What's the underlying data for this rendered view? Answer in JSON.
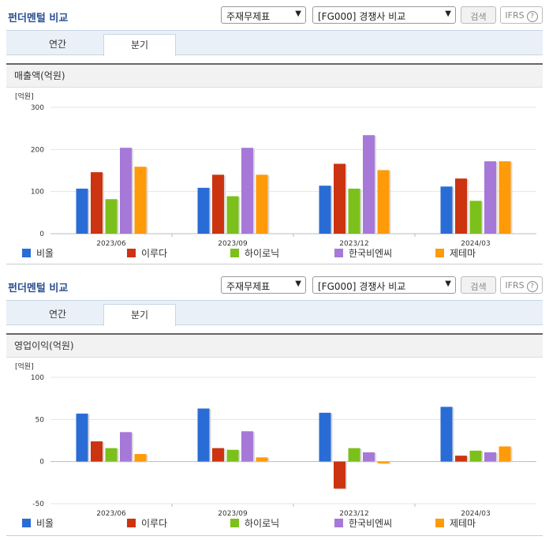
{
  "header": {
    "title": "펀더멘털 비교",
    "select1": "주재무제표",
    "select2": "[FG000] 경쟁사 비교",
    "search_btn": "검색",
    "ifrs_btn": "IFRS",
    "help": "?"
  },
  "tabs": [
    "연간",
    "분기"
  ],
  "active_tab": "분기",
  "sections": [
    {
      "subtitle": "매출액(억원)"
    },
    {
      "subtitle": "영업이익(억원)"
    }
  ],
  "colors": [
    "#2a6cd6",
    "#cc3310",
    "#7cc01c",
    "#a678d8",
    "#ff9a08"
  ],
  "chart_data": [
    {
      "type": "bar",
      "title": "매출액(억원)",
      "unit_label": "[억원]",
      "categories": [
        "2023/06",
        "2023/09",
        "2023/12",
        "2024/03"
      ],
      "ylim": [
        0,
        300
      ],
      "yticks": [
        0,
        100,
        200,
        300
      ],
      "legend_position": "bottom",
      "series": [
        {
          "name": "비올",
          "values": [
            107,
            109,
            114,
            112
          ]
        },
        {
          "name": "이루다",
          "values": [
            146,
            140,
            166,
            131
          ]
        },
        {
          "name": "하이로닉",
          "values": [
            82,
            89,
            107,
            78
          ]
        },
        {
          "name": "한국비엔씨",
          "values": [
            204,
            204,
            234,
            172
          ]
        },
        {
          "name": "제테마",
          "values": [
            159,
            140,
            151,
            172
          ]
        }
      ]
    },
    {
      "type": "bar",
      "title": "영업이익(억원)",
      "unit_label": "[억원]",
      "categories": [
        "2023/06",
        "2023/09",
        "2023/12",
        "2024/03"
      ],
      "ylim": [
        -50,
        100
      ],
      "yticks": [
        -50,
        0,
        50,
        100
      ],
      "legend_position": "bottom",
      "series": [
        {
          "name": "비올",
          "values": [
            57,
            63,
            58,
            65
          ]
        },
        {
          "name": "이루다",
          "values": [
            24,
            16,
            -32,
            7
          ]
        },
        {
          "name": "하이로닉",
          "values": [
            16,
            14,
            16,
            13
          ]
        },
        {
          "name": "한국비엔씨",
          "values": [
            35,
            36,
            11,
            11
          ]
        },
        {
          "name": "제테마",
          "values": [
            9,
            5,
            -2,
            18
          ]
        }
      ]
    }
  ]
}
